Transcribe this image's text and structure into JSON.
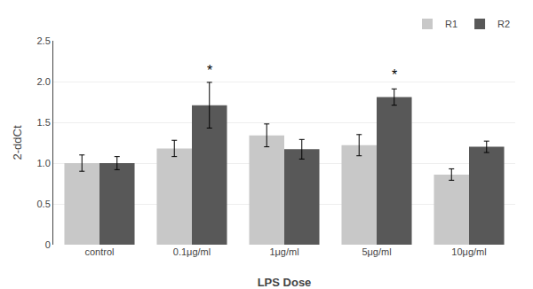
{
  "chart_data": {
    "type": "bar",
    "categories": [
      "control",
      "0.1μg/ml",
      "1μg/ml",
      "5μg/ml",
      "10μg/ml"
    ],
    "series": [
      {
        "name": "R1",
        "color": "#c8c8c8",
        "values": [
          1.0,
          1.18,
          1.34,
          1.22,
          0.86
        ],
        "errors": [
          0.1,
          0.1,
          0.14,
          0.13,
          0.07
        ]
      },
      {
        "name": "R2",
        "color": "#585858",
        "values": [
          1.0,
          1.71,
          1.17,
          1.81,
          1.2
        ],
        "errors": [
          0.08,
          0.28,
          0.12,
          0.1,
          0.07
        ]
      }
    ],
    "xlabel": "LPS Dose",
    "ylabel": "2-ddCt",
    "ylim": [
      0,
      2.5
    ],
    "yticks": [
      0,
      0.5,
      {
        "value": 1.0,
        "label": "1.0"
      },
      1.5,
      {
        "value": 2.0,
        "label": "2.0"
      },
      2.5
    ],
    "grid": true,
    "legend": "upper right",
    "annotations": [
      {
        "text": "*",
        "category": "0.1μg/ml",
        "series": "R2",
        "y": 2.02
      },
      {
        "text": "*",
        "category": "5μg/ml",
        "series": "R2",
        "y": 1.97
      }
    ]
  }
}
